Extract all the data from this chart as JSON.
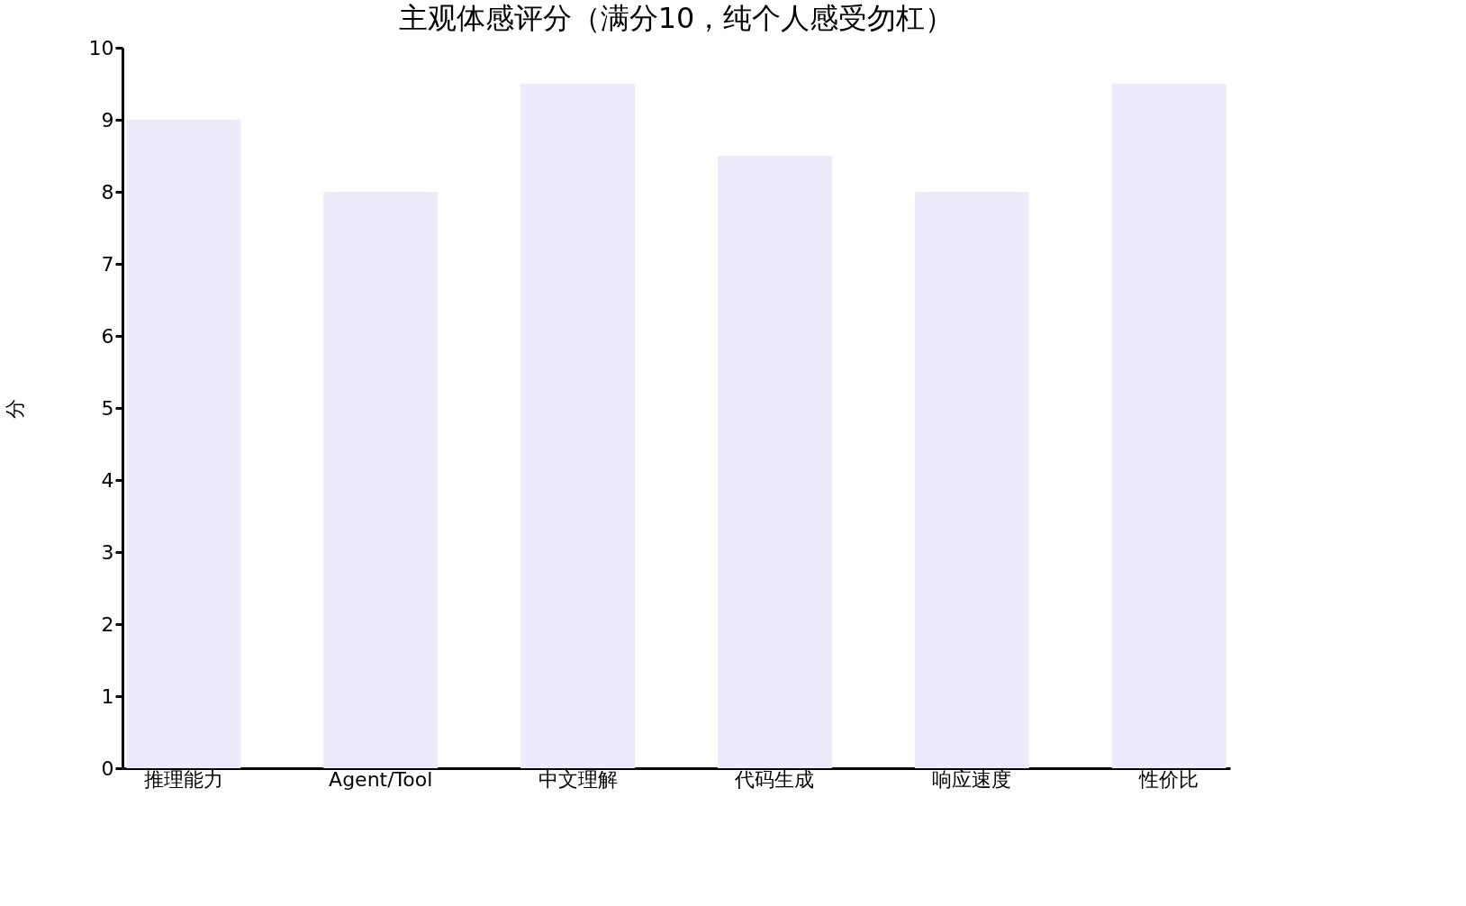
{
  "chart_data": {
    "type": "bar",
    "title": "主观体感评分（满分10，纯个人感受勿杠）",
    "ylabel": "分",
    "categories": [
      "推理能力",
      "Agent/Tool",
      "中文理解",
      "代码生成",
      "响应速度",
      "性价比"
    ],
    "values": [
      9,
      8,
      9.5,
      8.5,
      8,
      9.5
    ],
    "color": "#ebebfc",
    "ylim": [
      0,
      10
    ],
    "yticks": [
      0,
      1,
      2,
      3,
      4,
      5,
      6,
      7,
      8,
      9,
      10
    ],
    "grid": false
  }
}
